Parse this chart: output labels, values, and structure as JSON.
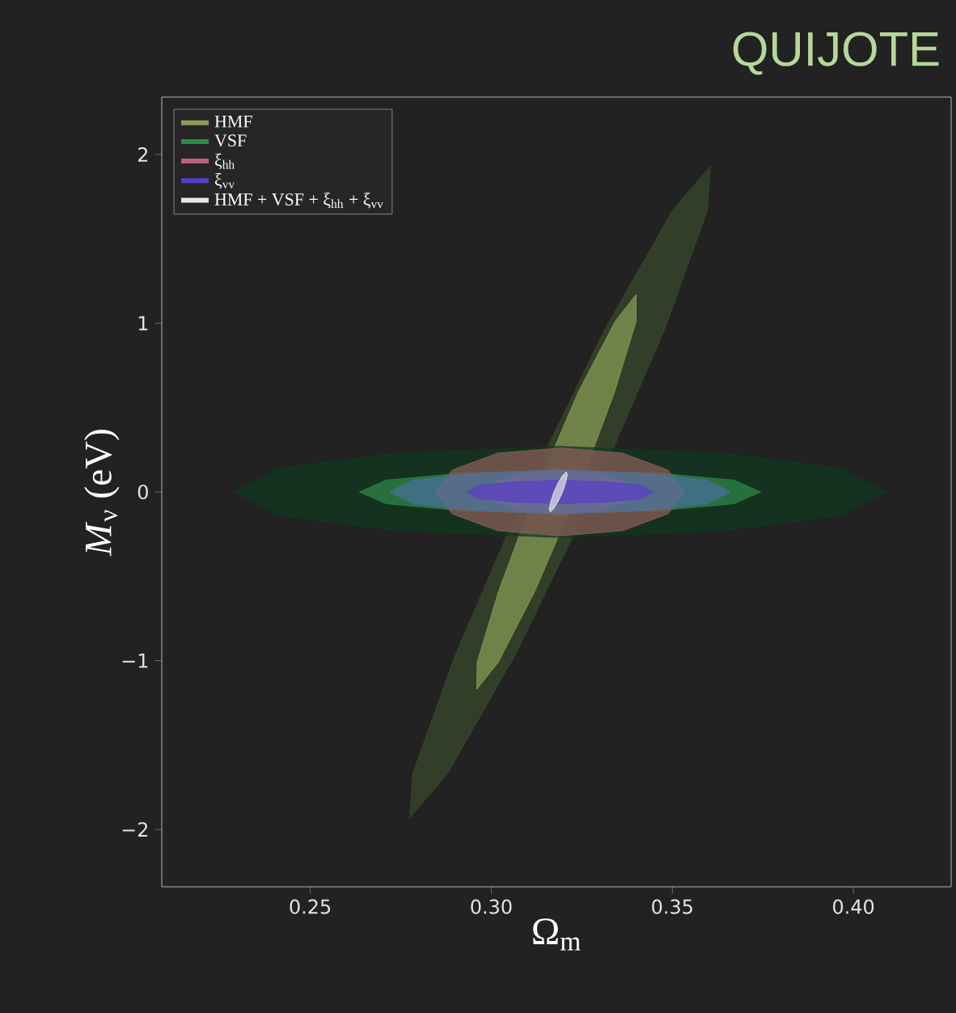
{
  "chart_data": {
    "type": "area",
    "title": "QUIJOTE",
    "xlabel": "Ω$_{m}$",
    "ylabel": "*M*$_{ν}$ (eV)",
    "xlim": [
      0.209,
      0.427
    ],
    "ylim": [
      -2.34,
      2.34
    ],
    "xticks": [
      {
        "value": 0.25,
        "label": "0.25"
      },
      {
        "value": 0.3,
        "label": "0.30"
      },
      {
        "value": 0.35,
        "label": "0.35"
      },
      {
        "value": 0.4,
        "label": "0.40"
      }
    ],
    "yticks": [
      {
        "value": -2,
        "label": "−2"
      },
      {
        "value": -1,
        "label": "−1"
      },
      {
        "value": 0,
        "label": "0"
      },
      {
        "value": 1,
        "label": "1"
      },
      {
        "value": 2,
        "label": "2"
      }
    ],
    "legend": "top left",
    "series": [
      {
        "color": "#3b4a2b",
        "x": [
          0.3605,
          0.3597,
          0.348,
          0.3285,
          0.3065,
          0.2879,
          0.2775,
          0.2783,
          0.29,
          0.3095,
          0.3315,
          0.3501
        ],
        "values": [
          1.93,
          1.67,
          0.97,
          0,
          -0.97,
          -1.67,
          -1.93,
          -1.67,
          -0.97,
          0,
          0.97,
          1.67
        ]
      },
      {
        "name": "HMF",
        "color": "#8a9f55",
        "x": [
          0.34,
          0.34,
          0.334,
          0.3238,
          0.312,
          0.3019,
          0.296,
          0.2961,
          0.302,
          0.3122,
          0.324,
          0.3342
        ],
        "values": [
          1.17,
          1.01,
          0.59,
          0,
          -0.59,
          -1.01,
          -1.17,
          -1.01,
          -0.59,
          0,
          0.59,
          1.01
        ]
      },
      {
        "color": "#10391f",
        "x": [
          0.409,
          0.3969,
          0.364,
          0.319,
          0.274,
          0.2411,
          0.229,
          0.2411,
          0.274,
          0.319,
          0.364,
          0.3969
        ],
        "values": [
          0,
          0.14,
          0.23,
          0.27,
          0.23,
          0.14,
          0,
          -0.14,
          -0.23,
          -0.27,
          -0.23,
          -0.14
        ]
      },
      {
        "name": "VSF",
        "color": "#2d8a48",
        "x": [
          0.3744,
          0.367,
          0.3467,
          0.319,
          0.2913,
          0.271,
          0.2636,
          0.271,
          0.2913,
          0.319,
          0.3467,
          0.367
        ],
        "values": [
          0,
          0.07,
          0.11,
          0.13,
          0.11,
          0.07,
          0,
          -0.07,
          -0.11,
          -0.13,
          -0.11,
          -0.07
        ]
      },
      {
        "color": "#8f5f5a",
        "x": [
          0.3534,
          0.3488,
          0.3362,
          0.319,
          0.3018,
          0.2892,
          0.2846,
          0.2892,
          0.3018,
          0.319,
          0.3362,
          0.3488
        ],
        "values": [
          0,
          0.13,
          0.23,
          0.26,
          0.23,
          0.13,
          0,
          -0.13,
          -0.23,
          -0.26,
          -0.23,
          -0.13
        ]
      },
      {
        "name": "ξ$_{hh}$",
        "color": "#c0607a",
        "x": [
          0.34,
          0.3372,
          0.3295,
          0.319,
          0.3085,
          0.3008,
          0.298,
          0.3008,
          0.3085,
          0.319,
          0.3295,
          0.3372
        ],
        "values": [
          0,
          0.06,
          0.11,
          0.13,
          0.11,
          0.06,
          0,
          -0.06,
          -0.11,
          -0.13,
          -0.11,
          -0.06
        ]
      },
      {
        "color": "#4a70a0",
        "x": [
          0.366,
          0.3597,
          0.3425,
          0.319,
          0.2955,
          0.2783,
          0.272,
          0.2783,
          0.2955,
          0.319,
          0.3425,
          0.3597
        ],
        "values": [
          0,
          0.07,
          0.11,
          0.13,
          0.11,
          0.07,
          0,
          -0.07,
          -0.11,
          -0.13,
          -0.11,
          -0.07
        ]
      },
      {
        "name": "ξ$_{vv}$",
        "color": "#5a3fc8",
        "x": [
          0.3447,
          0.3413,
          0.3319,
          0.319,
          0.3062,
          0.2967,
          0.2933,
          0.2967,
          0.3062,
          0.319,
          0.3319,
          0.3413
        ],
        "values": [
          0,
          0.04,
          0.06,
          0.07,
          0.06,
          0.04,
          0,
          -0.04,
          -0.06,
          -0.07,
          -0.06,
          -0.04
        ]
      },
      {
        "name": "HMF + VSF + ξ$_{hh}$ + ξ$_{vv}$",
        "color": "#e8e8e8",
        "x": [
          0.3207,
          0.321,
          0.3206,
          0.3197,
          0.3184,
          0.3172,
          0.3163,
          0.316,
          0.3164,
          0.3173,
          0.3186,
          0.3198
        ],
        "values": [
          0.12,
          0.1,
          0.06,
          0,
          -0.06,
          -0.1,
          -0.12,
          -0.1,
          -0.06,
          0,
          0.06,
          0.1
        ]
      }
    ]
  }
}
